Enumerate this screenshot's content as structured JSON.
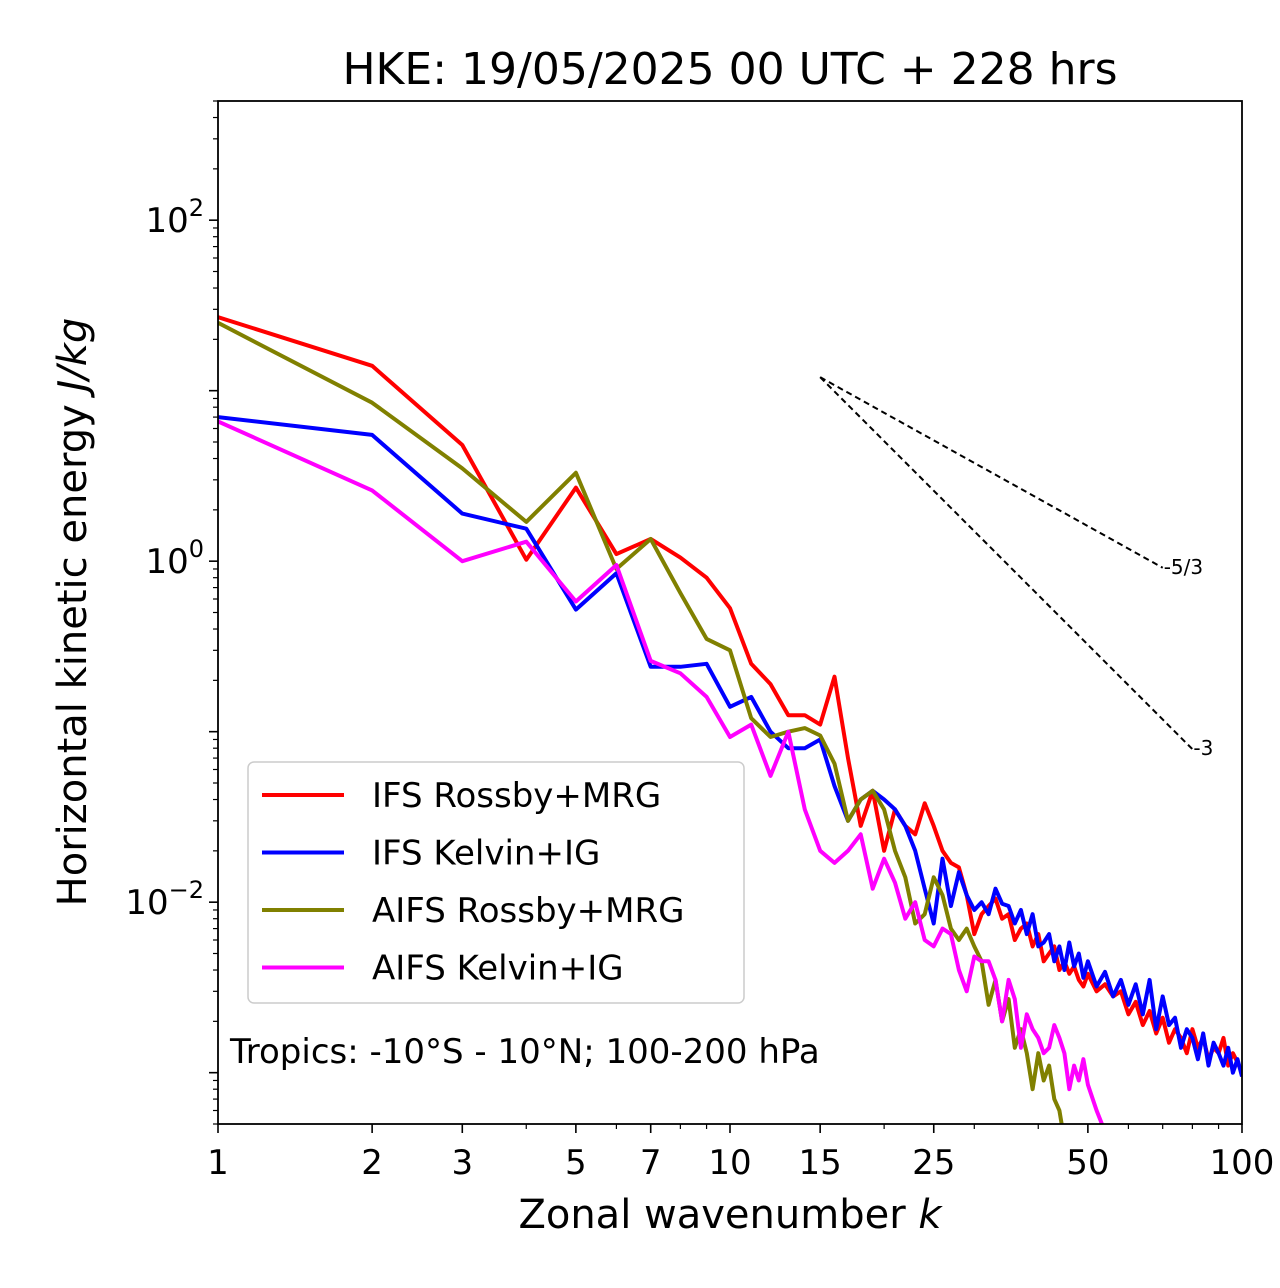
{
  "chart_data": {
    "type": "line",
    "title": "HKE: 19/05/2025 00 UTC + 228 hrs",
    "xlabel": "Zonal wavenumber k",
    "xlabel_parts": {
      "text": "Zonal wavenumber ",
      "italic": "k"
    },
    "ylabel": "Horizontal kinetic energy J/kg",
    "ylabel_parts": {
      "text": "Horizontal kinetic energy ",
      "italic": "J/kg"
    },
    "x_scale": "log",
    "y_scale": "log",
    "xlim": [
      1,
      100
    ],
    "ylim": [
      0.0005,
      500
    ],
    "x_ticks": [
      {
        "value": 1,
        "label": "1"
      },
      {
        "value": 2,
        "label": "2"
      },
      {
        "value": 3,
        "label": "3"
      },
      {
        "value": 5,
        "label": "5"
      },
      {
        "value": 7,
        "label": "7"
      },
      {
        "value": 10,
        "label": "10"
      },
      {
        "value": 15,
        "label": "15"
      },
      {
        "value": 25,
        "label": "25"
      },
      {
        "value": 50,
        "label": "50"
      },
      {
        "value": 100,
        "label": "100"
      }
    ],
    "y_ticks": [
      {
        "value": 100,
        "base": "10",
        "exp": "2"
      },
      {
        "value": 1,
        "base": "10",
        "exp": "0"
      },
      {
        "value": 0.01,
        "base": "10",
        "exp": "−2"
      }
    ],
    "annotation": "Tropics: -10°S - 10°N; 100-200 hPa",
    "legend_position": "lower-left",
    "reference_slopes": [
      {
        "label": "-5/3",
        "slope": -1.6667,
        "x": [
          15,
          70
        ],
        "y": [
          12,
          0.915
        ]
      },
      {
        "label": "-3",
        "slope": -3,
        "x": [
          15,
          80
        ],
        "y": [
          12,
          0.079
        ]
      }
    ],
    "series": [
      {
        "name": "IFS Rossby+MRG",
        "color": "#ff0000",
        "x": [
          1,
          2,
          3,
          4,
          5,
          6,
          7,
          8,
          9,
          10,
          11,
          12,
          13,
          14,
          15,
          16,
          17,
          18,
          19,
          20,
          21,
          22,
          23,
          24,
          25,
          26,
          27,
          28,
          29,
          30,
          31,
          32,
          33,
          34,
          35,
          36,
          37,
          38,
          39,
          40,
          41,
          42,
          43,
          44,
          45,
          46,
          47,
          48,
          49,
          50,
          52,
          54,
          56,
          58,
          60,
          62,
          64,
          66,
          68,
          70,
          72,
          74,
          76,
          78,
          80,
          82,
          84,
          86,
          88,
          90,
          92,
          94,
          96,
          98,
          100
        ],
        "y": [
          27,
          14,
          4.8,
          1.02,
          2.7,
          1.1,
          1.35,
          1.05,
          0.8,
          0.53,
          0.25,
          0.19,
          0.125,
          0.125,
          0.11,
          0.21,
          0.07,
          0.028,
          0.045,
          0.02,
          0.035,
          0.028,
          0.025,
          0.038,
          0.028,
          0.02,
          0.017,
          0.016,
          0.011,
          0.0065,
          0.0085,
          0.0095,
          0.0105,
          0.008,
          0.0085,
          0.006,
          0.007,
          0.0075,
          0.0055,
          0.0065,
          0.0045,
          0.005,
          0.0055,
          0.004,
          0.0045,
          0.0038,
          0.0042,
          0.0035,
          0.0032,
          0.0038,
          0.003,
          0.0033,
          0.0028,
          0.003,
          0.0022,
          0.0026,
          0.0019,
          0.0023,
          0.0017,
          0.0021,
          0.0015,
          0.0018,
          0.0016,
          0.0013,
          0.0018,
          0.0014,
          0.0016,
          0.0012,
          0.0014,
          0.0013,
          0.0016,
          0.0011,
          0.0013,
          0.00115,
          0.001
        ]
      },
      {
        "name": "IFS Kelvin+IG",
        "color": "#0000ff",
        "x": [
          1,
          2,
          3,
          4,
          5,
          6,
          7,
          8,
          9,
          10,
          11,
          12,
          13,
          14,
          15,
          16,
          17,
          18,
          19,
          20,
          21,
          22,
          23,
          24,
          25,
          26,
          27,
          28,
          29,
          30,
          31,
          32,
          33,
          34,
          35,
          36,
          37,
          38,
          39,
          40,
          41,
          42,
          43,
          44,
          45,
          46,
          47,
          48,
          49,
          50,
          52,
          54,
          56,
          58,
          60,
          62,
          64,
          66,
          68,
          70,
          72,
          74,
          76,
          78,
          80,
          82,
          84,
          86,
          88,
          90,
          92,
          94,
          96,
          98,
          100
        ],
        "y": [
          7,
          5.5,
          1.9,
          1.55,
          0.52,
          0.85,
          0.24,
          0.24,
          0.25,
          0.14,
          0.16,
          0.1,
          0.08,
          0.08,
          0.09,
          0.048,
          0.03,
          0.04,
          0.045,
          0.04,
          0.035,
          0.028,
          0.02,
          0.012,
          0.0075,
          0.018,
          0.0095,
          0.015,
          0.011,
          0.009,
          0.01,
          0.0085,
          0.012,
          0.0098,
          0.0095,
          0.0075,
          0.009,
          0.0065,
          0.0085,
          0.0055,
          0.0058,
          0.0065,
          0.0045,
          0.0055,
          0.004,
          0.0058,
          0.0042,
          0.005,
          0.0036,
          0.0045,
          0.0032,
          0.0039,
          0.0028,
          0.0035,
          0.0025,
          0.0033,
          0.0022,
          0.0035,
          0.0018,
          0.0028,
          0.0019,
          0.0021,
          0.0014,
          0.0018,
          0.0016,
          0.0012,
          0.0017,
          0.0011,
          0.0015,
          0.0013,
          0.0011,
          0.0014,
          0.001,
          0.0012,
          0.00095
        ]
      },
      {
        "name": "AIFS Rossby+MRG",
        "color": "#808000",
        "x": [
          1,
          2,
          3,
          4,
          5,
          6,
          7,
          8,
          9,
          10,
          11,
          12,
          13,
          14,
          15,
          16,
          17,
          18,
          19,
          20,
          21,
          22,
          23,
          24,
          25,
          26,
          27,
          28,
          29,
          30,
          31,
          32,
          33,
          34,
          35,
          36,
          37,
          38,
          39,
          40,
          41,
          42,
          43,
          44,
          45
        ],
        "y": [
          25,
          8.5,
          3.5,
          1.7,
          3.3,
          0.9,
          1.35,
          0.65,
          0.35,
          0.3,
          0.12,
          0.093,
          0.1,
          0.105,
          0.095,
          0.065,
          0.03,
          0.04,
          0.045,
          0.035,
          0.02,
          0.014,
          0.0075,
          0.0085,
          0.014,
          0.011,
          0.007,
          0.006,
          0.007,
          0.0055,
          0.0045,
          0.0025,
          0.0035,
          0.002,
          0.0027,
          0.0014,
          0.0018,
          0.0013,
          0.0008,
          0.0013,
          0.0009,
          0.0011,
          0.0007,
          0.0006,
          0.0004
        ]
      },
      {
        "name": "AIFS Kelvin+IG",
        "color": "#ff00ff",
        "x": [
          1,
          2,
          3,
          4,
          5,
          6,
          7,
          8,
          9,
          10,
          11,
          12,
          13,
          14,
          15,
          16,
          17,
          18,
          19,
          20,
          21,
          22,
          23,
          24,
          25,
          26,
          27,
          28,
          29,
          30,
          31,
          32,
          33,
          34,
          35,
          36,
          37,
          38,
          39,
          40,
          41,
          42,
          43,
          44,
          45,
          46,
          47,
          48,
          49,
          50,
          52,
          54,
          56
        ],
        "y": [
          6.6,
          2.6,
          1.0,
          1.3,
          0.58,
          0.95,
          0.26,
          0.22,
          0.16,
          0.093,
          0.11,
          0.055,
          0.1,
          0.035,
          0.02,
          0.017,
          0.02,
          0.025,
          0.012,
          0.018,
          0.013,
          0.008,
          0.01,
          0.006,
          0.0055,
          0.007,
          0.0065,
          0.004,
          0.003,
          0.0048,
          0.0045,
          0.0045,
          0.0035,
          0.002,
          0.0035,
          0.0027,
          0.0014,
          0.0022,
          0.0018,
          0.0016,
          0.0013,
          0.0014,
          0.0019,
          0.0016,
          0.0013,
          0.0008,
          0.0011,
          0.0009,
          0.0012,
          0.00085,
          0.0006,
          0.00045,
          0.0004
        ]
      }
    ]
  }
}
